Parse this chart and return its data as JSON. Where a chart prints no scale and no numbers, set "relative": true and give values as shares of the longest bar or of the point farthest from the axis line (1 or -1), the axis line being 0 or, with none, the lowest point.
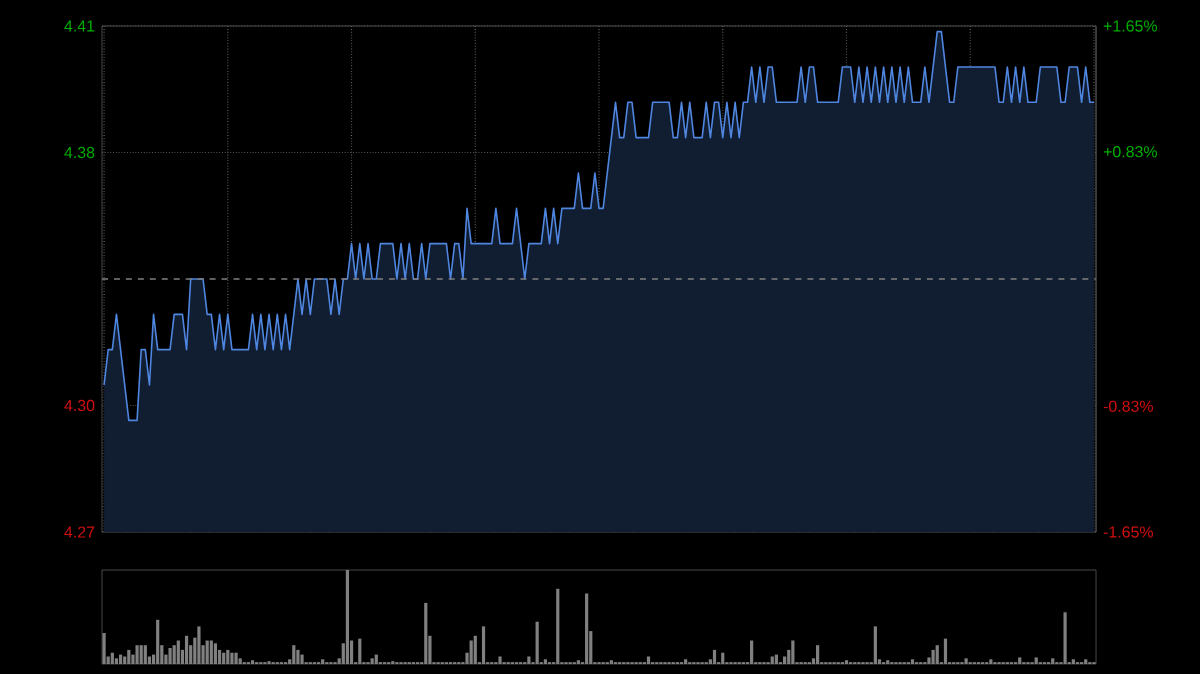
{
  "chart_data": [
    {
      "type": "area",
      "categories": [
        null,
        null,
        null,
        null,
        null,
        null,
        null,
        null,
        null,
        null,
        null,
        null,
        null,
        null,
        null,
        null,
        null,
        null,
        null,
        null,
        null,
        null,
        null,
        null,
        null,
        null,
        null,
        null,
        null,
        null,
        null,
        null,
        null,
        null,
        null,
        null,
        null,
        null,
        null,
        null,
        null,
        null,
        null,
        null,
        null,
        null,
        null,
        null,
        null,
        null,
        null,
        null,
        null,
        null,
        null,
        null,
        null,
        null,
        null,
        null,
        null,
        null,
        null,
        null,
        null,
        null,
        null,
        null,
        null,
        null,
        null,
        null,
        null,
        null,
        null,
        null,
        null,
        null,
        null,
        null,
        null,
        null,
        null,
        null,
        null,
        null,
        null,
        null,
        null,
        null,
        null,
        null,
        null,
        null,
        null,
        null,
        null,
        null,
        null,
        null,
        null,
        null,
        null,
        null,
        null,
        null,
        null,
        null,
        null,
        null,
        null,
        null,
        null,
        null,
        null,
        null,
        null,
        null,
        null,
        null,
        null,
        null,
        null,
        null,
        null,
        null,
        null,
        null,
        null,
        null,
        null,
        null,
        null,
        null,
        null,
        null,
        null,
        null,
        null,
        null,
        null,
        null,
        null,
        null,
        null,
        null,
        null,
        null,
        null,
        null,
        null,
        null,
        null,
        null,
        null,
        null,
        null,
        null,
        null,
        null,
        null,
        null,
        null,
        null,
        null,
        null,
        null,
        null,
        null,
        null,
        null,
        null,
        null,
        null,
        null,
        null,
        null,
        null,
        null,
        null,
        null,
        null,
        null,
        null,
        null,
        null,
        null,
        null,
        null,
        null,
        null,
        null,
        null,
        null,
        null,
        null,
        null,
        null,
        null,
        null,
        null,
        null,
        null,
        null,
        null,
        null,
        null,
        null,
        null,
        null,
        null,
        null,
        null,
        null,
        null,
        null,
        null,
        null,
        null,
        null,
        null,
        null,
        null,
        null,
        null,
        null,
        null,
        null,
        null,
        null,
        null,
        null,
        null,
        null,
        null,
        null,
        null,
        null,
        null,
        null,
        null
      ],
      "values": [
        4.31,
        4.32,
        4.32,
        4.33,
        4.32,
        4.31,
        4.3,
        4.3,
        4.3,
        4.32,
        4.32,
        4.31,
        4.33,
        4.32,
        4.32,
        4.32,
        4.32,
        4.33,
        4.33,
        4.33,
        4.32,
        4.34,
        4.34,
        4.34,
        4.34,
        4.33,
        4.33,
        4.32,
        4.33,
        4.32,
        4.33,
        4.32,
        4.32,
        4.32,
        4.32,
        4.32,
        4.33,
        4.32,
        4.33,
        4.32,
        4.33,
        4.32,
        4.33,
        4.32,
        4.33,
        4.32,
        4.33,
        4.34,
        4.33,
        4.34,
        4.33,
        4.34,
        4.34,
        4.34,
        4.34,
        4.33,
        4.34,
        4.33,
        4.34,
        4.34,
        4.35,
        4.34,
        4.35,
        4.34,
        4.35,
        4.34,
        4.34,
        4.35,
        4.35,
        4.35,
        4.35,
        4.34,
        4.35,
        4.34,
        4.35,
        4.34,
        4.34,
        4.35,
        4.34,
        4.35,
        4.35,
        4.35,
        4.35,
        4.35,
        4.34,
        4.35,
        4.35,
        4.34,
        4.36,
        4.35,
        4.35,
        4.35,
        4.35,
        4.35,
        4.35,
        4.36,
        4.35,
        4.35,
        4.35,
        4.35,
        4.36,
        4.35,
        4.34,
        4.35,
        4.35,
        4.35,
        4.35,
        4.36,
        4.35,
        4.36,
        4.35,
        4.36,
        4.36,
        4.36,
        4.36,
        4.37,
        4.36,
        4.36,
        4.36,
        4.37,
        4.36,
        4.36,
        4.37,
        4.38,
        4.39,
        4.38,
        4.38,
        4.39,
        4.39,
        4.38,
        4.38,
        4.38,
        4.38,
        4.39,
        4.39,
        4.39,
        4.39,
        4.39,
        4.38,
        4.38,
        4.39,
        4.38,
        4.39,
        4.38,
        4.38,
        4.38,
        4.39,
        4.38,
        4.39,
        4.39,
        4.38,
        4.39,
        4.38,
        4.39,
        4.38,
        4.39,
        4.39,
        4.4,
        4.39,
        4.4,
        4.39,
        4.4,
        4.4,
        4.39,
        4.39,
        4.39,
        4.39,
        4.39,
        4.39,
        4.4,
        4.39,
        4.4,
        4.4,
        4.39,
        4.39,
        4.39,
        4.39,
        4.39,
        4.39,
        4.4,
        4.4,
        4.4,
        4.39,
        4.4,
        4.39,
        4.4,
        4.39,
        4.4,
        4.39,
        4.4,
        4.39,
        4.4,
        4.39,
        4.4,
        4.39,
        4.4,
        4.39,
        4.39,
        4.39,
        4.4,
        4.39,
        4.4,
        4.41,
        4.41,
        4.4,
        4.39,
        4.39,
        4.4,
        4.4,
        4.4,
        4.4,
        4.4,
        4.4,
        4.4,
        4.4,
        4.4,
        4.4,
        4.39,
        4.39,
        4.4,
        4.39,
        4.4,
        4.39,
        4.4,
        4.39,
        4.39,
        4.39,
        4.4,
        4.4,
        4.4,
        4.4,
        4.4,
        4.39,
        4.39,
        4.4,
        4.4,
        4.4,
        4.39,
        4.4,
        4.39,
        4.39
      ],
      "color": "#4f86e0",
      "marker": "none",
      "grid": true,
      "tick_labels": "y",
      "ylim": [
        4.2684,
        4.4116
      ],
      "yticks": [
        {
          "value": 4.2684,
          "label": "4.27"
        },
        {
          "value": 4.3042,
          "label": "4.30"
        },
        {
          "value": 4.3758,
          "label": "4.38"
        },
        {
          "value": 4.4116,
          "label": "4.41"
        }
      ],
      "y2lim": [
        -1.65,
        1.65
      ],
      "y2ticks": [
        {
          "value": -1.65,
          "label": "-1.65%"
        },
        {
          "value": -0.83,
          "label": "-0.83%"
        },
        {
          "value": 0.83,
          "label": "+0.83%"
        },
        {
          "value": 1.65,
          "label": "+1.65%"
        }
      ],
      "ref_lines": [
        {
          "axis": "y",
          "value": 4.34,
          "color": "#808080",
          "line_style": "dashed"
        }
      ]
    },
    {
      "type": "bar",
      "relative": true,
      "color": "#808080",
      "tick_labels": false,
      "categories": [
        null,
        null,
        null,
        null,
        null,
        null,
        null,
        null,
        null,
        null,
        null,
        null,
        null,
        null,
        null,
        null,
        null,
        null,
        null,
        null,
        null,
        null,
        null,
        null,
        null,
        null,
        null,
        null,
        null,
        null,
        null,
        null,
        null,
        null,
        null,
        null,
        null,
        null,
        null,
        null,
        null,
        null,
        null,
        null,
        null,
        null,
        null,
        null,
        null,
        null,
        null,
        null,
        null,
        null,
        null,
        null,
        null,
        null,
        null,
        null,
        null,
        null,
        null,
        null,
        null,
        null,
        null,
        null,
        null,
        null,
        null,
        null,
        null,
        null,
        null,
        null,
        null,
        null,
        null,
        null,
        null,
        null,
        null,
        null,
        null,
        null,
        null,
        null,
        null,
        null,
        null,
        null,
        null,
        null,
        null,
        null,
        null,
        null,
        null,
        null,
        null,
        null,
        null,
        null,
        null,
        null,
        null,
        null,
        null,
        null,
        null,
        null,
        null,
        null,
        null,
        null,
        null,
        null,
        null,
        null,
        null,
        null,
        null,
        null,
        null,
        null,
        null,
        null,
        null,
        null,
        null,
        null,
        null,
        null,
        null,
        null,
        null,
        null,
        null,
        null,
        null,
        null,
        null,
        null,
        null,
        null,
        null,
        null,
        null,
        null,
        null,
        null,
        null,
        null,
        null,
        null,
        null,
        null,
        null,
        null,
        null,
        null,
        null,
        null,
        null,
        null,
        null,
        null,
        null,
        null,
        null,
        null,
        null,
        null,
        null,
        null,
        null,
        null,
        null,
        null,
        null,
        null,
        null,
        null,
        null,
        null,
        null,
        null,
        null,
        null,
        null,
        null,
        null,
        null,
        null,
        null,
        null,
        null,
        null,
        null,
        null,
        null,
        null,
        null,
        null,
        null,
        null,
        null,
        null,
        null,
        null,
        null,
        null,
        null,
        null,
        null,
        null,
        null,
        null,
        null,
        null,
        null,
        null,
        null,
        null,
        null,
        null,
        null,
        null,
        null,
        null,
        null,
        null,
        null,
        null,
        null,
        null,
        null,
        null,
        null,
        null
      ],
      "values": [
        0.33,
        0.08,
        0.12,
        0.06,
        0.1,
        0.08,
        0.15,
        0.1,
        0.2,
        0.2,
        0.2,
        0.08,
        0.1,
        0.47,
        0.2,
        0.1,
        0.17,
        0.2,
        0.25,
        0.15,
        0.3,
        0.2,
        0.28,
        0.4,
        0.2,
        0.25,
        0.25,
        0.22,
        0.15,
        0.12,
        0.15,
        0.12,
        0.12,
        0.06,
        0.02,
        0.02,
        0.04,
        0.02,
        0.02,
        0.02,
        0.03,
        0.02,
        0.02,
        0.02,
        0.02,
        0.05,
        0.2,
        0.15,
        0.1,
        0.02,
        0.02,
        0.02,
        0.02,
        0.05,
        0.02,
        0.02,
        0.02,
        0.06,
        0.22,
        1,
        0.25,
        0.02,
        0.27,
        0.02,
        0.02,
        0.06,
        0.1,
        0.02,
        0.02,
        0.02,
        0.03,
        0.02,
        0.02,
        0.02,
        0.02,
        0.02,
        0.02,
        0.02,
        0.65,
        0.3,
        0.02,
        0.02,
        0.02,
        0.02,
        0.02,
        0.02,
        0.02,
        0.02,
        0.12,
        0.25,
        0.3,
        0.02,
        0.4,
        0.02,
        0.02,
        0.02,
        0.08,
        0.02,
        0.02,
        0.02,
        0.02,
        0.02,
        0.02,
        0.08,
        0.02,
        0.45,
        0.02,
        0.05,
        0.02,
        0.02,
        0.8,
        0.02,
        0.02,
        0.02,
        0.02,
        0.04,
        0.02,
        0.75,
        0.35,
        0.02,
        0.02,
        0.02,
        0.02,
        0.04,
        0.02,
        0.02,
        0.02,
        0.02,
        0.02,
        0.02,
        0.02,
        0.02,
        0.08,
        0.02,
        0.02,
        0.02,
        0.02,
        0.02,
        0.02,
        0.02,
        0.02,
        0.05,
        0.02,
        0.02,
        0.02,
        0.02,
        0.02,
        0.05,
        0.15,
        0.02,
        0.12,
        0.02,
        0.02,
        0.02,
        0.02,
        0.02,
        0.02,
        0.25,
        0.02,
        0.02,
        0.02,
        0.02,
        0.08,
        0.1,
        0.02,
        0.08,
        0.15,
        0.25,
        0.02,
        0.02,
        0.02,
        0.02,
        0.06,
        0.2,
        0.02,
        0.02,
        0.02,
        0.02,
        0.02,
        0.02,
        0.04,
        0.02,
        0.02,
        0.02,
        0.02,
        0.02,
        0.02,
        0.4,
        0.05,
        0.02,
        0.04,
        0.02,
        0.02,
        0.02,
        0.02,
        0.02,
        0.05,
        0.02,
        0.02,
        0.02,
        0.07,
        0.15,
        0.2,
        0.02,
        0.27,
        0.02,
        0.02,
        0.02,
        0.02,
        0.06,
        0.02,
        0.02,
        0.02,
        0.02,
        0.02,
        0.05,
        0.02,
        0.02,
        0.02,
        0.02,
        0.02,
        0.02,
        0.07,
        0.02,
        0.02,
        0.02,
        0.07,
        0.02,
        0.02,
        0.02,
        0.06,
        0.02,
        0.02,
        0.55,
        0.02,
        0.05,
        0.02,
        0.02,
        0.05,
        0.02,
        0.02
      ]
    }
  ]
}
